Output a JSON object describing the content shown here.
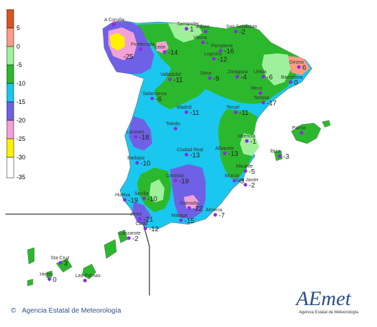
{
  "legend": {
    "entries": [
      {
        "label": "5",
        "color": "#d9541e"
      },
      {
        "label": "0",
        "color": "#ff9b86"
      },
      {
        "label": "-5",
        "color": "#9ef09a"
      },
      {
        "label": "-10",
        "color": "#2cb82c"
      },
      {
        "label": "-15",
        "color": "#19c7ef"
      },
      {
        "label": "-20",
        "color": "#6e61e6"
      },
      {
        "label": "-25",
        "color": "#f3a1d8"
      },
      {
        "label": "-30",
        "color": "#fff200"
      },
      {
        "label": "-35",
        "color": "#ffffff"
      }
    ]
  },
  "stations": [
    {
      "name": "A Coruña",
      "value": "",
      "color": "#8a2be2"
    },
    {
      "name": "Santander",
      "value": "1",
      "color": "#8a2be2"
    },
    {
      "name": "Bilbao",
      "value": "",
      "color": "#8a2be2"
    },
    {
      "name": "San Sebastian",
      "value": "-2",
      "color": "#8a2be2"
    },
    {
      "name": "Ponferrada",
      "value": "",
      "color": "#8a2be2"
    },
    {
      "name": "León",
      "value": "-14",
      "color": "#8a2be2"
    },
    {
      "name": "Vitoria",
      "value": "-",
      "color": "#8a2be2"
    },
    {
      "name": "Pamplona",
      "value": "-16",
      "color": "#8a2be2"
    },
    {
      "name": "Logroño",
      "value": "-12",
      "color": "#8a2be2"
    },
    {
      "name": "Girona",
      "value": "6",
      "color": "#8a2be2"
    },
    {
      "name": "Valladolid",
      "value": "-11",
      "color": "#8a2be2"
    },
    {
      "name": "Soria",
      "value": "-9",
      "color": "#8a2be2"
    },
    {
      "name": "Zaragoza",
      "value": "-4",
      "color": "#8a2be2"
    },
    {
      "name": "Lleida",
      "value": "-6",
      "color": "#8a2be2"
    },
    {
      "name": "Barcelona",
      "value": "0",
      "color": "#8a2be2"
    },
    {
      "name": "Salamanca",
      "value": "-6",
      "color": "#8a2be2"
    },
    {
      "name": "Reus",
      "value": "",
      "color": "#8a2be2"
    },
    {
      "name": "Tortosa",
      "value": "-17",
      "color": "#8a2be2"
    },
    {
      "name": "Madrid",
      "value": "-11",
      "color": "#8a2be2"
    },
    {
      "name": "Teruel",
      "value": "-11",
      "color": "#8a2be2"
    },
    {
      "name": "Toledo",
      "value": "",
      "color": "#8a2be2"
    },
    {
      "name": "Palma",
      "value": "",
      "color": "#8a2be2"
    },
    {
      "name": "Cáceres",
      "value": "-18",
      "color": "#8a2be2"
    },
    {
      "name": "Ciudad Real",
      "value": "-13",
      "color": "#8a2be2"
    },
    {
      "name": "Albacete",
      "value": "-13",
      "color": "#8a2be2"
    },
    {
      "name": "Valencia",
      "value": "-1",
      "color": "#8a2be2"
    },
    {
      "name": "Ibiza",
      "value": "-3",
      "color": "#8a2be2"
    },
    {
      "name": "Badajoz",
      "value": "-10",
      "color": "#8a2be2"
    },
    {
      "name": "Alicante",
      "value": "-5",
      "color": "#8a2be2"
    },
    {
      "name": "Córdoba",
      "value": "-19",
      "color": "#8a2be2"
    },
    {
      "name": "Murcia",
      "value": "-3",
      "color": "#8a2be2"
    },
    {
      "name": "San Javier",
      "value": "-2",
      "color": "#8a2be2"
    },
    {
      "name": "Sevilla",
      "value": "-10",
      "color": "#8a2be2"
    },
    {
      "name": "Huelva",
      "value": "-19",
      "color": "#8a2be2"
    },
    {
      "name": "Granada",
      "value": "-22",
      "color": "#8a2be2"
    },
    {
      "name": "Jerez",
      "value": "-21",
      "color": "#8a2be2"
    },
    {
      "name": "Almería",
      "value": "-7",
      "color": "#8a2be2"
    },
    {
      "name": "Málaga",
      "value": "-15",
      "color": "#8a2be2"
    },
    {
      "name": "Cádiz",
      "value": "-12",
      "color": "#8a2be2"
    },
    {
      "name": "Lanzarote",
      "value": "-2",
      "color": "#8a2be2"
    },
    {
      "name": "Sta Cruz",
      "value": "3",
      "color": "#8a2be2"
    },
    {
      "name": "Hierro",
      "value": "0",
      "color": "#8a2be2"
    },
    {
      "name": "Las Palmas",
      "value": "",
      "color": "#8a2be2"
    }
  ],
  "footer": {
    "copyright_symbol": "©",
    "agency": "Agencia Estatal de Meteorología"
  },
  "logo": {
    "word": "AEmet",
    "subtitle": "Agencia Estatal de Meteorología"
  },
  "extra_values": [
    "-25",
    "-20"
  ]
}
